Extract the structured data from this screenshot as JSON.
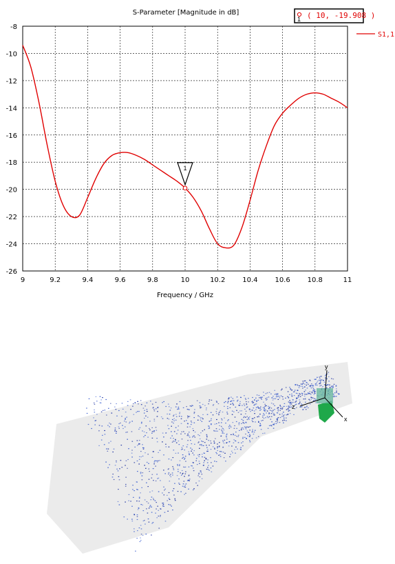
{
  "chart_data": {
    "type": "line",
    "title": "S-Parameter [Magnitude in dB]",
    "xlabel": "Frequency / GHz",
    "ylabel": "",
    "xlim": [
      9,
      11
    ],
    "ylim": [
      -26,
      -8
    ],
    "xticks": [
      "9",
      "9.2",
      "9.4",
      "9.6",
      "9.8",
      "10",
      "10.2",
      "10.4",
      "10.6",
      "10.8",
      "11"
    ],
    "yticks": [
      "-8",
      "-10",
      "-12",
      "-14",
      "-16",
      "-18",
      "-20",
      "-22",
      "-24",
      "-26"
    ],
    "grid": true,
    "legend_position": "top-right",
    "series": [
      {
        "name": "S1,1",
        "color": "#e00000",
        "x": [
          9.0,
          9.05,
          9.1,
          9.15,
          9.2,
          9.25,
          9.3,
          9.35,
          9.4,
          9.45,
          9.5,
          9.55,
          9.6,
          9.65,
          9.7,
          9.75,
          9.8,
          9.85,
          9.9,
          9.95,
          10.0,
          10.05,
          10.1,
          10.15,
          10.2,
          10.25,
          10.3,
          10.35,
          10.4,
          10.45,
          10.5,
          10.55,
          10.6,
          10.65,
          10.7,
          10.75,
          10.8,
          10.85,
          10.9,
          10.95,
          11.0
        ],
        "y": [
          -9.4,
          -11.0,
          -13.6,
          -16.7,
          -19.4,
          -21.2,
          -22.0,
          -21.9,
          -20.6,
          -19.2,
          -18.1,
          -17.5,
          -17.3,
          -17.3,
          -17.5,
          -17.8,
          -18.2,
          -18.6,
          -19.0,
          -19.4,
          -19.9,
          -20.6,
          -21.6,
          -22.9,
          -24.0,
          -24.3,
          -24.1,
          -22.8,
          -20.8,
          -18.6,
          -16.8,
          -15.3,
          -14.4,
          -13.8,
          -13.3,
          -13.0,
          -12.9,
          -13.0,
          -13.3,
          -13.6,
          -14.0
        ]
      }
    ],
    "markers": [
      {
        "id": "1",
        "x": 10,
        "y": -19.908,
        "readout": "( 10, -19.908 )"
      }
    ]
  },
  "field_view": {
    "axis_labels": {
      "x": "x",
      "y": "y",
      "z": "z"
    }
  }
}
